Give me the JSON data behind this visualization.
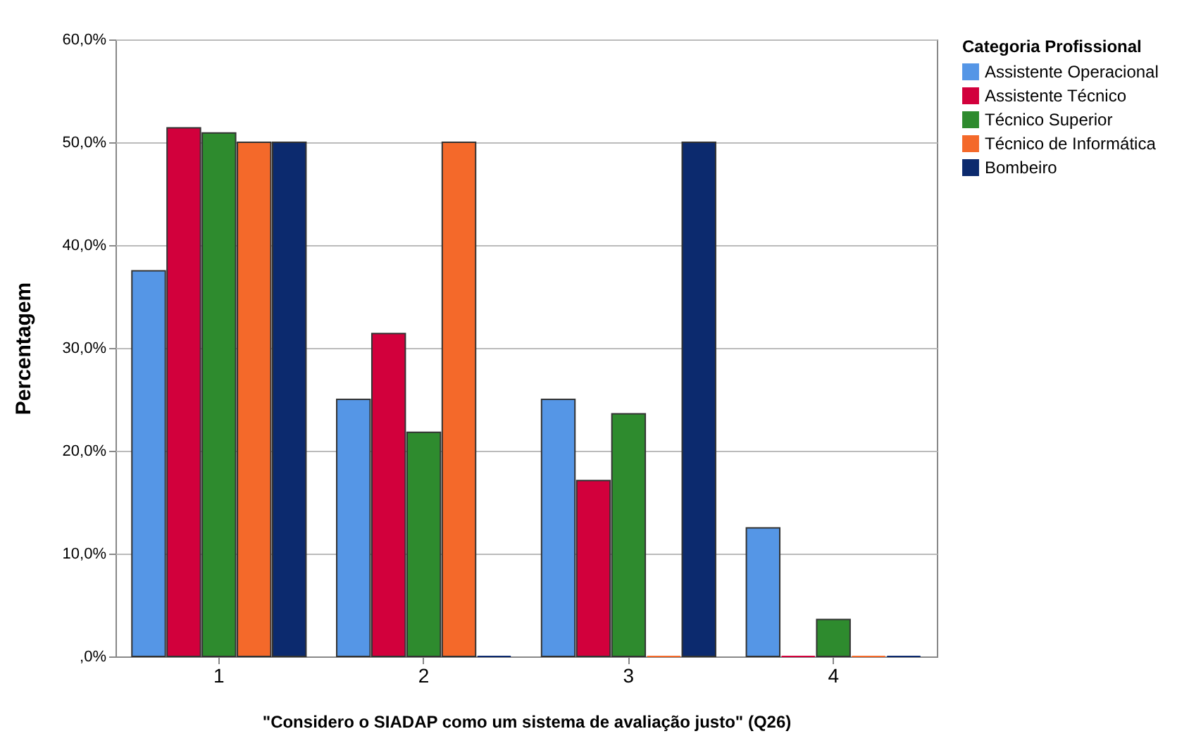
{
  "chart_data": {
    "type": "bar",
    "xlabel": "\"Considero o SIADAP como um sistema de avaliação justo\" (Q26)",
    "ylabel": "Percentagem",
    "legend_title": "Categoria Profissional",
    "categories": [
      "1",
      "2",
      "3",
      "4"
    ],
    "series": [
      {
        "name": "Assistente Operacional",
        "color": "#5596e6",
        "values": [
          37.5,
          25.0,
          25.0,
          12.5
        ]
      },
      {
        "name": "Assistente Técnico",
        "color": "#d2003c",
        "values": [
          51.4,
          31.4,
          17.1,
          0
        ]
      },
      {
        "name": "Técnico Superior",
        "color": "#2e8b2e",
        "values": [
          50.9,
          21.8,
          23.6,
          3.6
        ]
      },
      {
        "name": "Técnico de Informática",
        "color": "#f4692a",
        "values": [
          50.0,
          50.0,
          0,
          0
        ]
      },
      {
        "name": "Bombeiro",
        "color": "#0c2a6e",
        "values": [
          50.0,
          0,
          50.0,
          0
        ]
      }
    ],
    "ylim": [
      0,
      60
    ],
    "yticks": [
      {
        "value": 0,
        "label": ",0%"
      },
      {
        "value": 10,
        "label": "10,0%"
      },
      {
        "value": 20,
        "label": "20,0%"
      },
      {
        "value": 30,
        "label": "30,0%"
      },
      {
        "value": 40,
        "label": "40,0%"
      },
      {
        "value": 50,
        "label": "50,0%"
      },
      {
        "value": 60,
        "label": "60,0%"
      }
    ],
    "grid": "y",
    "legend": "top right"
  }
}
